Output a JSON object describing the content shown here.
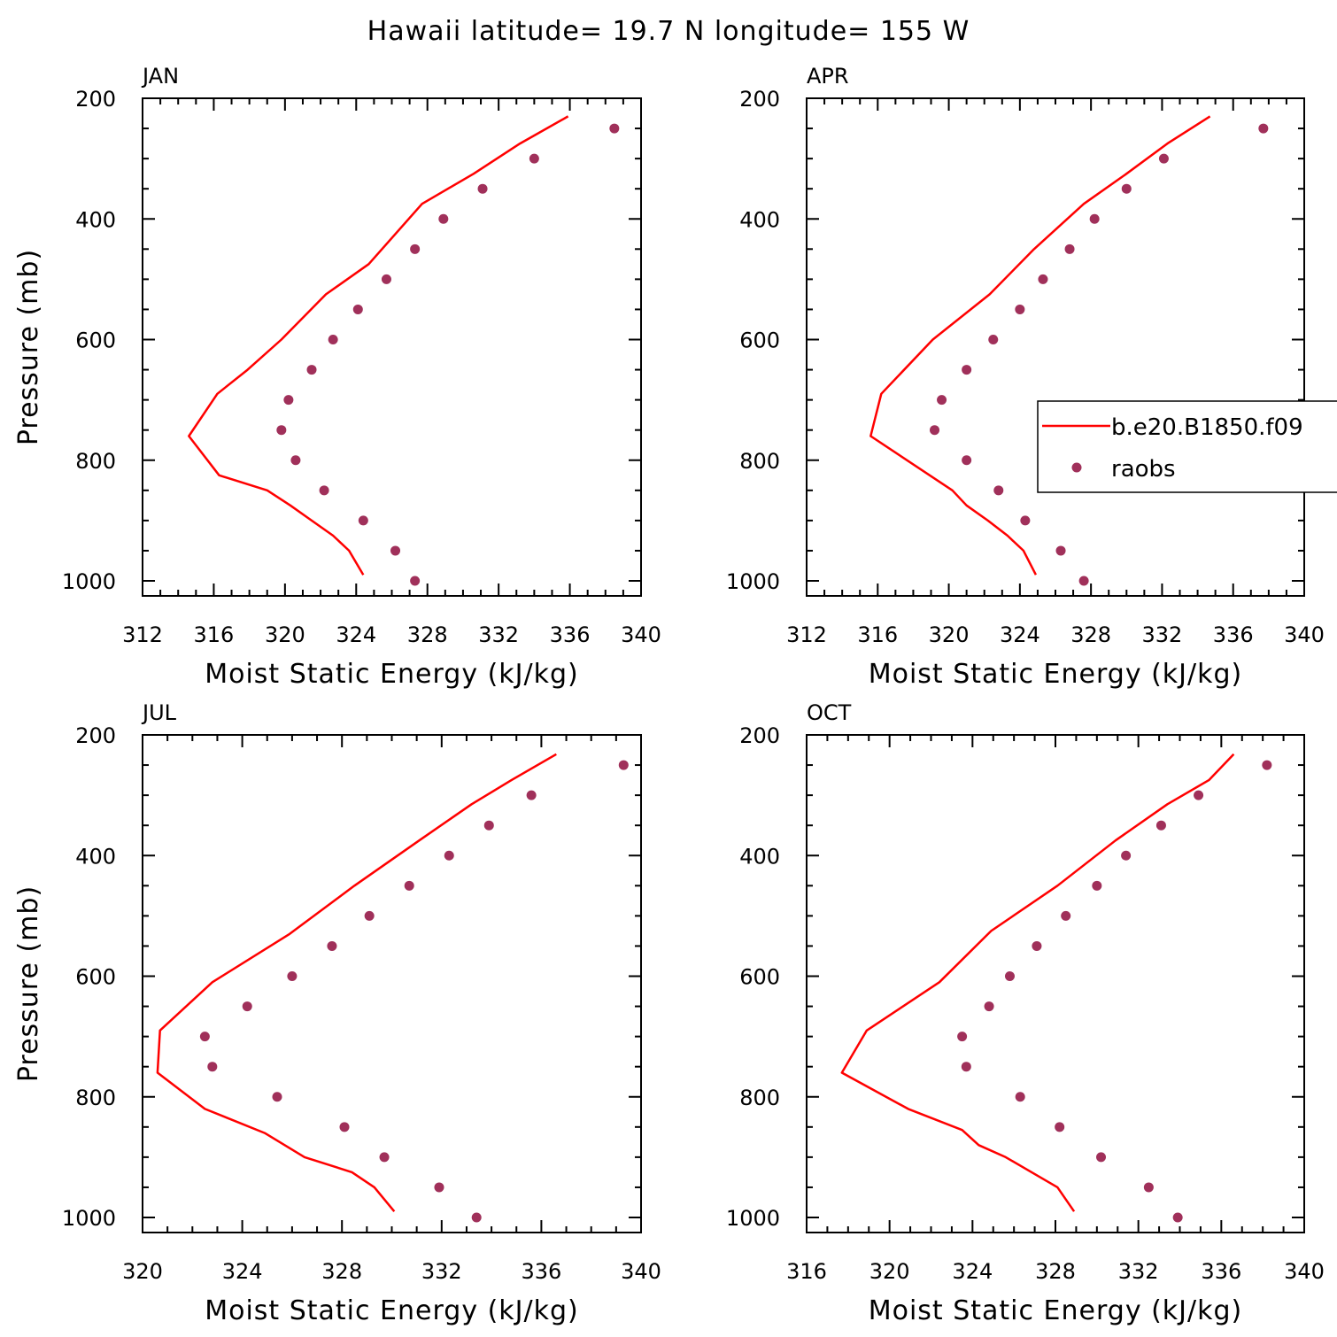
{
  "title": "Hawaii  latitude= 19.7 N longitude= 155 W",
  "colors": {
    "model": "#ff0000",
    "obs": "#a0305a",
    "axis": "#000000"
  },
  "legend": {
    "entries": [
      "b.e20.B1850.f09",
      "raobs"
    ],
    "placement": "inside-right-of-APR-panel"
  },
  "chart_data": [
    {
      "type": "line+scatter",
      "panel_label": "JAN",
      "xlabel": "Moist Static Energy (kJ/kg)",
      "ylabel": "Pressure (mb)",
      "xlim": [
        312,
        340
      ],
      "ylim": [
        1000,
        200
      ],
      "xticks": [
        312,
        316,
        320,
        324,
        328,
        332,
        336,
        340
      ],
      "yticks": [
        200,
        400,
        600,
        800,
        1000
      ],
      "series": [
        {
          "name": "b.e20.B1850.f09",
          "style": "line",
          "x": [
            324.4,
            323.6,
            322.7,
            321.5,
            320.3,
            319.0,
            316.3,
            314.6,
            316.2,
            317.9,
            319.8,
            322.3,
            324.7,
            327.7,
            330.6,
            333.2,
            335.9
          ],
          "y": [
            990,
            950,
            925,
            900,
            875,
            850,
            825,
            760,
            690,
            650,
            600,
            525,
            475,
            375,
            325,
            275,
            230
          ]
        },
        {
          "name": "raobs",
          "style": "points",
          "x": [
            327.3,
            326.2,
            324.4,
            322.2,
            320.6,
            319.8,
            320.2,
            321.5,
            322.7,
            324.1,
            325.7,
            327.3,
            328.9,
            331.1,
            334.0,
            338.5
          ],
          "y": [
            1000,
            950,
            900,
            850,
            800,
            750,
            700,
            650,
            600,
            550,
            500,
            450,
            400,
            350,
            300,
            250
          ]
        }
      ]
    },
    {
      "type": "line+scatter",
      "panel_label": "APR",
      "xlabel": "Moist Static Energy (kJ/kg)",
      "ylabel": "",
      "xlim": [
        312,
        340
      ],
      "ylim": [
        1000,
        200
      ],
      "xticks": [
        312,
        316,
        320,
        324,
        328,
        332,
        336,
        340
      ],
      "yticks": [
        200,
        400,
        600,
        800,
        1000
      ],
      "series": [
        {
          "name": "b.e20.B1850.f09",
          "style": "line",
          "x": [
            324.9,
            324.2,
            323.3,
            322.2,
            321.0,
            320.2,
            315.6,
            316.2,
            319.1,
            322.3,
            324.8,
            327.6,
            330.0,
            332.3,
            334.7
          ],
          "y": [
            990,
            950,
            925,
            900,
            875,
            850,
            760,
            690,
            600,
            525,
            450,
            375,
            325,
            275,
            230
          ]
        },
        {
          "name": "raobs",
          "style": "points",
          "x": [
            327.6,
            326.3,
            324.3,
            322.8,
            321.0,
            319.2,
            319.6,
            321.0,
            322.5,
            324.0,
            325.3,
            326.8,
            328.2,
            330.0,
            332.1,
            337.7
          ],
          "y": [
            1000,
            950,
            900,
            850,
            800,
            750,
            700,
            650,
            600,
            550,
            500,
            450,
            400,
            350,
            300,
            250
          ]
        }
      ]
    },
    {
      "type": "line+scatter",
      "panel_label": "JUL",
      "xlabel": "Moist Static Energy (kJ/kg)",
      "ylabel": "Pressure (mb)",
      "xlim": [
        320,
        340
      ],
      "ylim": [
        1000,
        200
      ],
      "xticks": [
        320,
        324,
        328,
        332,
        336,
        340
      ],
      "yticks": [
        200,
        400,
        600,
        800,
        1000
      ],
      "series": [
        {
          "name": "b.e20.B1850.f09",
          "style": "line",
          "x": [
            330.1,
            329.3,
            328.4,
            326.5,
            324.9,
            322.5,
            320.6,
            320.7,
            322.8,
            325.9,
            328.5,
            331.1,
            333.2,
            334.8,
            336.6
          ],
          "y": [
            990,
            950,
            925,
            900,
            860,
            820,
            760,
            690,
            610,
            530,
            450,
            375,
            315,
            275,
            232
          ]
        },
        {
          "name": "raobs",
          "style": "points",
          "x": [
            333.4,
            331.9,
            329.7,
            328.1,
            325.4,
            322.8,
            322.5,
            324.2,
            326.0,
            327.6,
            329.1,
            330.7,
            332.3,
            333.9,
            335.6,
            339.3
          ],
          "y": [
            1000,
            950,
            900,
            850,
            800,
            750,
            700,
            650,
            600,
            550,
            500,
            450,
            400,
            350,
            300,
            250
          ]
        }
      ]
    },
    {
      "type": "line+scatter",
      "panel_label": "OCT",
      "xlabel": "Moist Static Energy (kJ/kg)",
      "ylabel": "",
      "xlim": [
        316,
        340
      ],
      "ylim": [
        1000,
        200
      ],
      "xticks": [
        316,
        320,
        324,
        328,
        332,
        336,
        340
      ],
      "yticks": [
        200,
        400,
        600,
        800,
        1000
      ],
      "series": [
        {
          "name": "b.e20.B1850.f09",
          "style": "line",
          "x": [
            328.9,
            328.1,
            327.1,
            325.6,
            324.3,
            323.5,
            320.9,
            317.7,
            318.9,
            322.4,
            324.9,
            328.1,
            330.9,
            333.4,
            335.4,
            336.6
          ],
          "y": [
            990,
            950,
            930,
            900,
            880,
            855,
            820,
            760,
            690,
            610,
            525,
            450,
            375,
            315,
            275,
            232
          ]
        },
        {
          "name": "raobs",
          "style": "points",
          "x": [
            333.9,
            332.5,
            330.2,
            328.2,
            326.3,
            323.7,
            323.5,
            324.8,
            325.8,
            327.1,
            328.5,
            330.0,
            331.4,
            333.1,
            334.9,
            338.2
          ],
          "y": [
            1000,
            950,
            900,
            850,
            800,
            750,
            700,
            650,
            600,
            550,
            500,
            450,
            400,
            350,
            300,
            250
          ]
        }
      ]
    }
  ]
}
